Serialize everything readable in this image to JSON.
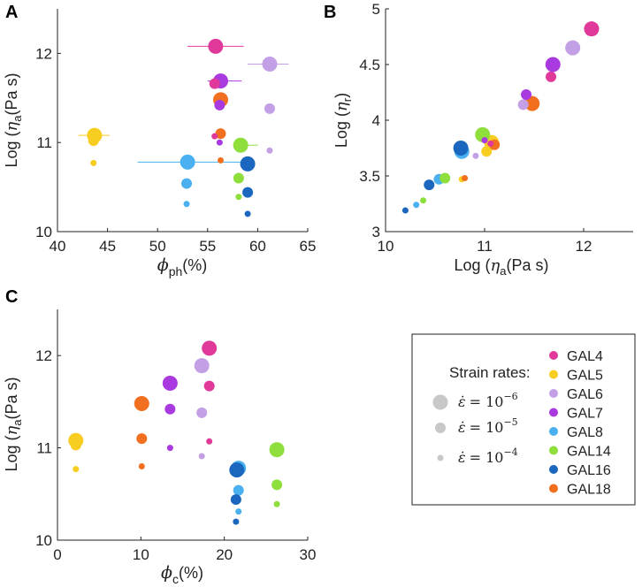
{
  "colors": {
    "GAL4": "#e0399a",
    "GAL5": "#f7cd22",
    "GAL6": "#c39fe6",
    "GAL7": "#a83adf",
    "GAL8": "#4ab0ef",
    "GAL14": "#8ede3c",
    "GAL16": "#1b66bf",
    "GAL18": "#f26f1f",
    "axis": "#222222",
    "legend_gray": "#c8c8c8"
  },
  "legend": {
    "title": "Strain rates:",
    "rate_labels": [
      {
        "prefix": "= 10",
        "exp": "−6"
      },
      {
        "prefix": "= 10",
        "exp": "−5"
      },
      {
        "prefix": "= 10",
        "exp": "−4"
      }
    ],
    "samples": [
      "GAL4",
      "GAL5",
      "GAL6",
      "GAL7",
      "GAL8",
      "GAL14",
      "GAL16",
      "GAL18"
    ]
  },
  "chart_data": [
    {
      "panel": "A",
      "type": "scatter",
      "xlabel": {
        "sym": "ϕ",
        "sub": "ph",
        "unit": "(%)"
      },
      "ylabel": {
        "pre": "Log (",
        "sym": "η",
        "sub": "a",
        "unit": "(Pa s)"
      },
      "xlim": [
        40,
        65
      ],
      "ylim": [
        10,
        12.5
      ],
      "xticks": [
        40,
        45,
        50,
        55,
        60,
        65
      ],
      "yticks": [
        10,
        11,
        12
      ],
      "errorbars": [
        {
          "s": "GAL4",
          "y": 12.08,
          "x0": 53.0,
          "x1": 58.6
        },
        {
          "s": "GAL6",
          "y": 11.88,
          "x0": 59.0,
          "x1": 63.1
        },
        {
          "s": "GAL7",
          "y": 11.69,
          "x0": 55.0,
          "x1": 58.4
        },
        {
          "s": "GAL5",
          "y": 11.08,
          "x0": 42.1,
          "x1": 45.2
        },
        {
          "s": "GAL8",
          "y": 10.78,
          "x0": 48.0,
          "x1": 58.6
        },
        {
          "s": "GAL14",
          "y": 10.97,
          "x0": 57.7,
          "x1": 60.0
        }
      ],
      "points": [
        {
          "s": "GAL4",
          "r": 3,
          "x": 55.8,
          "y": 12.08
        },
        {
          "s": "GAL4",
          "r": 2,
          "x": 55.7,
          "y": 11.66
        },
        {
          "s": "GAL4",
          "r": 1,
          "x": 55.7,
          "y": 11.07
        },
        {
          "s": "GAL5",
          "r": 3,
          "x": 43.7,
          "y": 11.08
        },
        {
          "s": "GAL5",
          "r": 2,
          "x": 43.6,
          "y": 11.02
        },
        {
          "s": "GAL5",
          "r": 1,
          "x": 43.6,
          "y": 10.77
        },
        {
          "s": "GAL6",
          "r": 3,
          "x": 61.2,
          "y": 11.88
        },
        {
          "s": "GAL6",
          "r": 2,
          "x": 61.2,
          "y": 11.38
        },
        {
          "s": "GAL6",
          "r": 1,
          "x": 61.2,
          "y": 10.91
        },
        {
          "s": "GAL7",
          "r": 3,
          "x": 56.3,
          "y": 11.69
        },
        {
          "s": "GAL7",
          "r": 2,
          "x": 56.2,
          "y": 11.42
        },
        {
          "s": "GAL7",
          "r": 1,
          "x": 56.2,
          "y": 11.0
        },
        {
          "s": "GAL8",
          "r": 3,
          "x": 53.0,
          "y": 10.78
        },
        {
          "s": "GAL8",
          "r": 2,
          "x": 52.9,
          "y": 10.54
        },
        {
          "s": "GAL8",
          "r": 1,
          "x": 52.9,
          "y": 10.31
        },
        {
          "s": "GAL14",
          "r": 3,
          "x": 58.3,
          "y": 10.97
        },
        {
          "s": "GAL14",
          "r": 2,
          "x": 58.1,
          "y": 10.6
        },
        {
          "s": "GAL14",
          "r": 1,
          "x": 58.1,
          "y": 10.39
        },
        {
          "s": "GAL16",
          "r": 3,
          "x": 59.0,
          "y": 10.76
        },
        {
          "s": "GAL16",
          "r": 2,
          "x": 59.0,
          "y": 10.44
        },
        {
          "s": "GAL16",
          "r": 1,
          "x": 59.0,
          "y": 10.2
        },
        {
          "s": "GAL18",
          "r": 3,
          "x": 56.3,
          "y": 11.48
        },
        {
          "s": "GAL18",
          "r": 2,
          "x": 56.3,
          "y": 11.1
        },
        {
          "s": "GAL18",
          "r": 1,
          "x": 56.3,
          "y": 10.8
        }
      ]
    },
    {
      "panel": "B",
      "type": "scatter",
      "xlabel": {
        "pre": "Log (",
        "sym": "η",
        "sub": "a",
        "unit": "(Pa s)"
      },
      "ylabel": {
        "pre": "Log (",
        "sym": "η",
        "sub": "r",
        "unit": ""
      },
      "xlim": [
        10,
        12.5
      ],
      "ylim": [
        3,
        5
      ],
      "xticks": [
        10,
        11,
        12
      ],
      "yticks": [
        3,
        3.5,
        4,
        4.5,
        5
      ],
      "points": [
        {
          "s": "GAL4",
          "r": 3,
          "x": 12.08,
          "y": 4.82
        },
        {
          "s": "GAL4",
          "r": 2,
          "x": 11.67,
          "y": 4.39
        },
        {
          "s": "GAL4",
          "r": 1,
          "x": 11.06,
          "y": 3.79
        },
        {
          "s": "GAL5",
          "r": 3,
          "x": 11.07,
          "y": 3.8
        },
        {
          "s": "GAL5",
          "r": 2,
          "x": 11.02,
          "y": 3.72
        },
        {
          "s": "GAL5",
          "r": 1,
          "x": 10.77,
          "y": 3.47
        },
        {
          "s": "GAL6",
          "r": 3,
          "x": 11.89,
          "y": 4.65
        },
        {
          "s": "GAL6",
          "r": 2,
          "x": 11.39,
          "y": 4.14
        },
        {
          "s": "GAL6",
          "r": 1,
          "x": 10.91,
          "y": 3.68
        },
        {
          "s": "GAL7",
          "r": 3,
          "x": 11.69,
          "y": 4.5
        },
        {
          "s": "GAL7",
          "r": 2,
          "x": 11.42,
          "y": 4.23
        },
        {
          "s": "GAL7",
          "r": 1,
          "x": 11.0,
          "y": 3.82
        },
        {
          "s": "GAL8",
          "r": 3,
          "x": 10.77,
          "y": 3.72
        },
        {
          "s": "GAL8",
          "r": 2,
          "x": 10.54,
          "y": 3.47
        },
        {
          "s": "GAL8",
          "r": 1,
          "x": 10.31,
          "y": 3.24
        },
        {
          "s": "GAL14",
          "r": 3,
          "x": 10.98,
          "y": 3.87
        },
        {
          "s": "GAL14",
          "r": 2,
          "x": 10.6,
          "y": 3.48
        },
        {
          "s": "GAL14",
          "r": 1,
          "x": 10.38,
          "y": 3.28
        },
        {
          "s": "GAL16",
          "r": 3,
          "x": 10.76,
          "y": 3.75
        },
        {
          "s": "GAL16",
          "r": 2,
          "x": 10.44,
          "y": 3.42
        },
        {
          "s": "GAL16",
          "r": 1,
          "x": 10.2,
          "y": 3.19
        },
        {
          "s": "GAL18",
          "r": 3,
          "x": 11.48,
          "y": 4.15
        },
        {
          "s": "GAL18",
          "r": 2,
          "x": 11.1,
          "y": 3.78
        },
        {
          "s": "GAL18",
          "r": 1,
          "x": 10.8,
          "y": 3.48
        }
      ]
    },
    {
      "panel": "C",
      "type": "scatter",
      "xlabel": {
        "sym": "ϕ",
        "sub": "c",
        "unit": "(%)"
      },
      "ylabel": {
        "pre": "Log (",
        "sym": "η",
        "sub": "a",
        "unit": "(Pa s)"
      },
      "xlim": [
        0,
        30
      ],
      "ylim": [
        10,
        12.5
      ],
      "xticks": [
        0,
        10,
        20,
        30
      ],
      "yticks": [
        10,
        11,
        12
      ],
      "points": [
        {
          "s": "GAL4",
          "r": 3,
          "x": 18.2,
          "y": 12.08
        },
        {
          "s": "GAL4",
          "r": 2,
          "x": 18.2,
          "y": 11.67
        },
        {
          "s": "GAL4",
          "r": 1,
          "x": 18.2,
          "y": 11.07
        },
        {
          "s": "GAL5",
          "r": 3,
          "x": 2.2,
          "y": 11.08
        },
        {
          "s": "GAL5",
          "r": 2,
          "x": 2.2,
          "y": 11.03
        },
        {
          "s": "GAL5",
          "r": 1,
          "x": 2.2,
          "y": 10.77
        },
        {
          "s": "GAL6",
          "r": 3,
          "x": 17.3,
          "y": 11.89
        },
        {
          "s": "GAL6",
          "r": 2,
          "x": 17.3,
          "y": 11.38
        },
        {
          "s": "GAL6",
          "r": 1,
          "x": 17.3,
          "y": 10.91
        },
        {
          "s": "GAL7",
          "r": 3,
          "x": 13.5,
          "y": 11.7
        },
        {
          "s": "GAL7",
          "r": 2,
          "x": 13.5,
          "y": 11.42
        },
        {
          "s": "GAL7",
          "r": 1,
          "x": 13.5,
          "y": 11.0
        },
        {
          "s": "GAL8",
          "r": 3,
          "x": 21.7,
          "y": 10.78
        },
        {
          "s": "GAL8",
          "r": 2,
          "x": 21.7,
          "y": 10.54
        },
        {
          "s": "GAL8",
          "r": 1,
          "x": 21.7,
          "y": 10.31
        },
        {
          "s": "GAL14",
          "r": 3,
          "x": 26.3,
          "y": 10.98
        },
        {
          "s": "GAL14",
          "r": 2,
          "x": 26.3,
          "y": 10.6
        },
        {
          "s": "GAL14",
          "r": 1,
          "x": 26.3,
          "y": 10.39
        },
        {
          "s": "GAL16",
          "r": 3,
          "x": 21.5,
          "y": 10.76
        },
        {
          "s": "GAL16",
          "r": 2,
          "x": 21.4,
          "y": 10.44
        },
        {
          "s": "GAL16",
          "r": 1,
          "x": 21.4,
          "y": 10.2
        },
        {
          "s": "GAL18",
          "r": 3,
          "x": 10.1,
          "y": 11.48
        },
        {
          "s": "GAL18",
          "r": 2,
          "x": 10.1,
          "y": 11.1
        },
        {
          "s": "GAL18",
          "r": 1,
          "x": 10.1,
          "y": 10.8
        }
      ]
    }
  ]
}
